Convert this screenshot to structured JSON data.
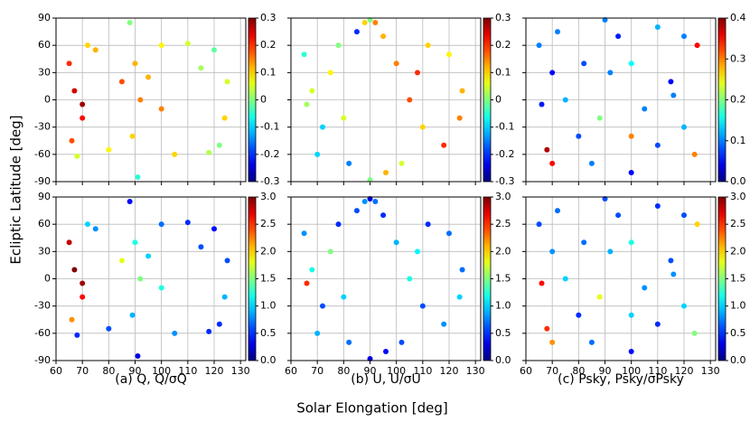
{
  "ylabel": "Ecliptic Latitude [deg]",
  "xlabel": "Solar Elongation [deg]",
  "captions": [
    "(a) Q, Q/σQ",
    "(b) U, U/σU",
    "(c) Psky, Psky/σPsky"
  ],
  "chart_data": [
    {
      "type": "scatter",
      "colormap": "jet",
      "grid": true,
      "xlim": [
        60,
        132
      ],
      "ylim": [
        -90,
        90
      ],
      "xticks": [
        60,
        70,
        80,
        90,
        100,
        110,
        120,
        130
      ],
      "yticks": [
        -90,
        -60,
        -30,
        0,
        30,
        60,
        90
      ],
      "clim": [
        -0.3,
        0.3
      ],
      "cticks": [
        -0.3,
        -0.2,
        -0.1,
        0,
        0.1,
        0.2,
        0.3
      ],
      "x": [
        65,
        67,
        70,
        66,
        72,
        68,
        75,
        80,
        88,
        90,
        92,
        89,
        91,
        85,
        100,
        110,
        120,
        125,
        124,
        118,
        105,
        100,
        115,
        70,
        122,
        95
      ],
      "y": [
        40,
        10,
        -20,
        -45,
        60,
        -62,
        55,
        -55,
        85,
        40,
        0,
        -40,
        -85,
        20,
        60,
        62,
        55,
        20,
        -20,
        -58,
        -60,
        -10,
        35,
        -5,
        -50,
        25
      ],
      "c": [
        0.2,
        0.25,
        0.22,
        0.18,
        0.1,
        0.05,
        0.12,
        0.08,
        0.0,
        0.12,
        0.15,
        0.1,
        -0.05,
        0.18,
        0.08,
        0.05,
        -0.02,
        0.05,
        0.1,
        0.03,
        0.1,
        0.15,
        0.02,
        0.28,
        0.0,
        0.12
      ]
    },
    {
      "type": "scatter",
      "colormap": "jet",
      "grid": true,
      "xlim": [
        60,
        132
      ],
      "ylim": [
        -90,
        90
      ],
      "xticks": [
        60,
        70,
        80,
        90,
        100,
        110,
        120,
        130
      ],
      "yticks": [
        -90,
        -60,
        -30,
        0,
        30,
        60,
        90
      ],
      "clim": [
        -0.3,
        0.3
      ],
      "cticks": [
        -0.3,
        -0.2,
        -0.1,
        0,
        0.1,
        0.2,
        0.3
      ],
      "x": [
        65,
        68,
        72,
        78,
        82,
        70,
        75,
        66,
        80,
        85,
        88,
        92,
        95,
        100,
        105,
        110,
        118,
        125,
        124,
        112,
        102,
        96,
        108,
        120,
        90,
        90
      ],
      "y": [
        50,
        10,
        -30,
        60,
        -70,
        -60,
        30,
        -5,
        -20,
        75,
        85,
        85,
        70,
        40,
        0,
        -30,
        -50,
        10,
        -20,
        60,
        -70,
        -80,
        30,
        50,
        88,
        -88
      ],
      "c": [
        -0.05,
        0.05,
        -0.1,
        0.0,
        -0.15,
        -0.1,
        0.08,
        0.02,
        0.05,
        -0.2,
        0.1,
        0.15,
        0.12,
        0.15,
        0.18,
        0.1,
        0.2,
        0.12,
        0.15,
        0.1,
        0.05,
        0.12,
        0.2,
        0.08,
        0.0,
        0.0
      ]
    },
    {
      "type": "scatter",
      "colormap": "jet",
      "grid": true,
      "xlim": [
        60,
        132
      ],
      "ylim": [
        -90,
        90
      ],
      "xticks": [
        60,
        70,
        80,
        90,
        100,
        110,
        120,
        130
      ],
      "yticks": [
        -90,
        -60,
        -30,
        0,
        30,
        60,
        90
      ],
      "clim": [
        0,
        0.4
      ],
      "cticks": [
        {
          "value": 0,
          "label": "0.0"
        },
        0.1,
        0.2,
        0.3,
        0.4
      ],
      "x": [
        65,
        70,
        75,
        80,
        85,
        95,
        100,
        105,
        110,
        115,
        120,
        125,
        68,
        72,
        88,
        92,
        100,
        120,
        124,
        70,
        110,
        90,
        82,
        100,
        116,
        66
      ],
      "y": [
        60,
        30,
        0,
        -40,
        -70,
        70,
        40,
        -10,
        -50,
        20,
        -30,
        60,
        -55,
        75,
        -20,
        30,
        -80,
        70,
        -60,
        -70,
        80,
        88,
        40,
        -40,
        5,
        -5
      ],
      "c": [
        0.1,
        0.05,
        0.12,
        0.08,
        0.1,
        0.06,
        0.15,
        0.1,
        0.08,
        0.05,
        0.12,
        0.35,
        0.38,
        0.1,
        0.2,
        0.1,
        0.05,
        0.1,
        0.3,
        0.35,
        0.12,
        0.1,
        0.08,
        0.3,
        0.1,
        0.06
      ]
    },
    {
      "type": "scatter",
      "colormap": "jet",
      "grid": true,
      "xlim": [
        60,
        132
      ],
      "ylim": [
        -90,
        90
      ],
      "xticks": [
        60,
        70,
        80,
        90,
        100,
        110,
        120,
        130
      ],
      "yticks": [
        -90,
        -60,
        -30,
        0,
        30,
        60,
        90
      ],
      "clim": [
        0,
        3
      ],
      "cticks": [
        {
          "value": 0,
          "label": "0.0"
        },
        0.5,
        {
          "value": 1,
          "label": "1.0"
        },
        1.5,
        {
          "value": 2,
          "label": "2.0"
        },
        2.5,
        {
          "value": 3,
          "label": "3.0"
        }
      ],
      "x": [
        65,
        67,
        70,
        66,
        72,
        68,
        75,
        80,
        88,
        90,
        92,
        89,
        91,
        85,
        100,
        110,
        120,
        125,
        124,
        118,
        105,
        100,
        115,
        70,
        122,
        95
      ],
      "y": [
        40,
        10,
        -20,
        -45,
        60,
        -62,
        55,
        -55,
        85,
        40,
        0,
        -40,
        -85,
        20,
        60,
        62,
        55,
        20,
        -20,
        -58,
        -60,
        -10,
        35,
        -5,
        -50,
        25
      ],
      "c": [
        2.8,
        3.0,
        2.6,
        2.2,
        1.0,
        0.5,
        0.8,
        0.6,
        0.4,
        1.2,
        1.5,
        0.9,
        0.3,
        1.8,
        0.7,
        0.5,
        0.4,
        0.6,
        0.9,
        0.5,
        0.8,
        1.2,
        0.6,
        2.9,
        0.5,
        1.0
      ]
    },
    {
      "type": "scatter",
      "colormap": "jet",
      "grid": true,
      "xlim": [
        60,
        132
      ],
      "ylim": [
        -90,
        90
      ],
      "xticks": [
        60,
        70,
        80,
        90,
        100,
        110,
        120,
        130
      ],
      "yticks": [
        -90,
        -60,
        -30,
        0,
        30,
        60,
        90
      ],
      "clim": [
        0,
        3
      ],
      "cticks": [
        {
          "value": 0,
          "label": "0.0"
        },
        0.5,
        {
          "value": 1,
          "label": "1.0"
        },
        1.5,
        {
          "value": 2,
          "label": "2.0"
        },
        2.5,
        {
          "value": 3,
          "label": "3.0"
        }
      ],
      "x": [
        65,
        68,
        72,
        78,
        82,
        70,
        75,
        66,
        80,
        85,
        88,
        92,
        95,
        100,
        105,
        110,
        118,
        125,
        124,
        112,
        102,
        96,
        108,
        120,
        90,
        90
      ],
      "y": [
        50,
        10,
        -30,
        60,
        -70,
        -60,
        30,
        -5,
        -20,
        75,
        85,
        85,
        70,
        40,
        0,
        -30,
        -50,
        10,
        -20,
        60,
        -70,
        -80,
        30,
        50,
        88,
        -88
      ],
      "c": [
        0.8,
        1.2,
        0.6,
        0.5,
        0.7,
        0.9,
        1.5,
        2.5,
        1.0,
        0.6,
        0.8,
        0.7,
        0.5,
        0.9,
        1.2,
        0.6,
        0.8,
        0.7,
        1.0,
        0.5,
        0.6,
        0.4,
        1.1,
        0.7,
        0.3,
        0.3
      ]
    },
    {
      "type": "scatter",
      "colormap": "jet",
      "grid": true,
      "xlim": [
        60,
        132
      ],
      "ylim": [
        -90,
        90
      ],
      "xticks": [
        60,
        70,
        80,
        90,
        100,
        110,
        120,
        130
      ],
      "yticks": [
        -90,
        -60,
        -30,
        0,
        30,
        60,
        90
      ],
      "clim": [
        0,
        3
      ],
      "cticks": [
        {
          "value": 0,
          "label": "0.0"
        },
        0.5,
        {
          "value": 1,
          "label": "1.0"
        },
        1.5,
        {
          "value": 2,
          "label": "2.0"
        },
        2.5,
        {
          "value": 3,
          "label": "3.0"
        }
      ],
      "x": [
        65,
        70,
        75,
        80,
        85,
        95,
        100,
        105,
        110,
        115,
        120,
        125,
        68,
        72,
        88,
        92,
        100,
        120,
        124,
        70,
        110,
        90,
        82,
        100,
        116,
        66
      ],
      "y": [
        60,
        30,
        0,
        -40,
        -70,
        70,
        40,
        -10,
        -50,
        20,
        -30,
        60,
        -55,
        75,
        -20,
        30,
        -80,
        70,
        -60,
        -70,
        80,
        88,
        40,
        -40,
        5,
        -5
      ],
      "c": [
        0.6,
        0.8,
        1.0,
        0.5,
        0.7,
        0.6,
        1.2,
        0.8,
        0.5,
        0.6,
        1.0,
        2.0,
        2.5,
        0.7,
        1.8,
        0.9,
        0.4,
        0.6,
        1.5,
        2.2,
        0.5,
        0.6,
        0.7,
        1.0,
        0.8,
        2.6
      ]
    }
  ]
}
